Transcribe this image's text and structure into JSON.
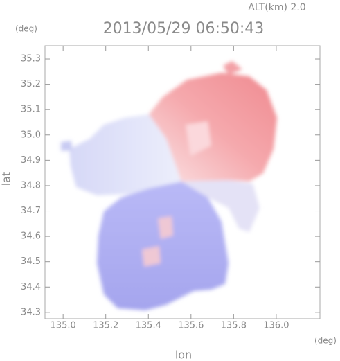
{
  "chart_data": {
    "type": "radar-map",
    "title": "2013/05/29 06:50:43",
    "subtitle": "ALT(km) 2.0",
    "x_label": "lon",
    "y_label": "lat",
    "x_unit": "(deg)",
    "y_unit": "(deg)",
    "xlim": [
      134.915,
      136.205
    ],
    "ylim": [
      34.275,
      35.352
    ],
    "xticks": [
      {
        "value": 135,
        "label": "135.0"
      },
      135.2,
      135.4,
      135.6,
      135.8,
      {
        "value": 136,
        "label": "136.0"
      }
    ],
    "yticks": [
      34.3,
      34.4,
      34.5,
      34.6,
      34.7,
      34.8,
      34.9,
      {
        "value": 35,
        "label": "35.0"
      },
      35.1,
      35.2,
      35.3
    ]
  }
}
